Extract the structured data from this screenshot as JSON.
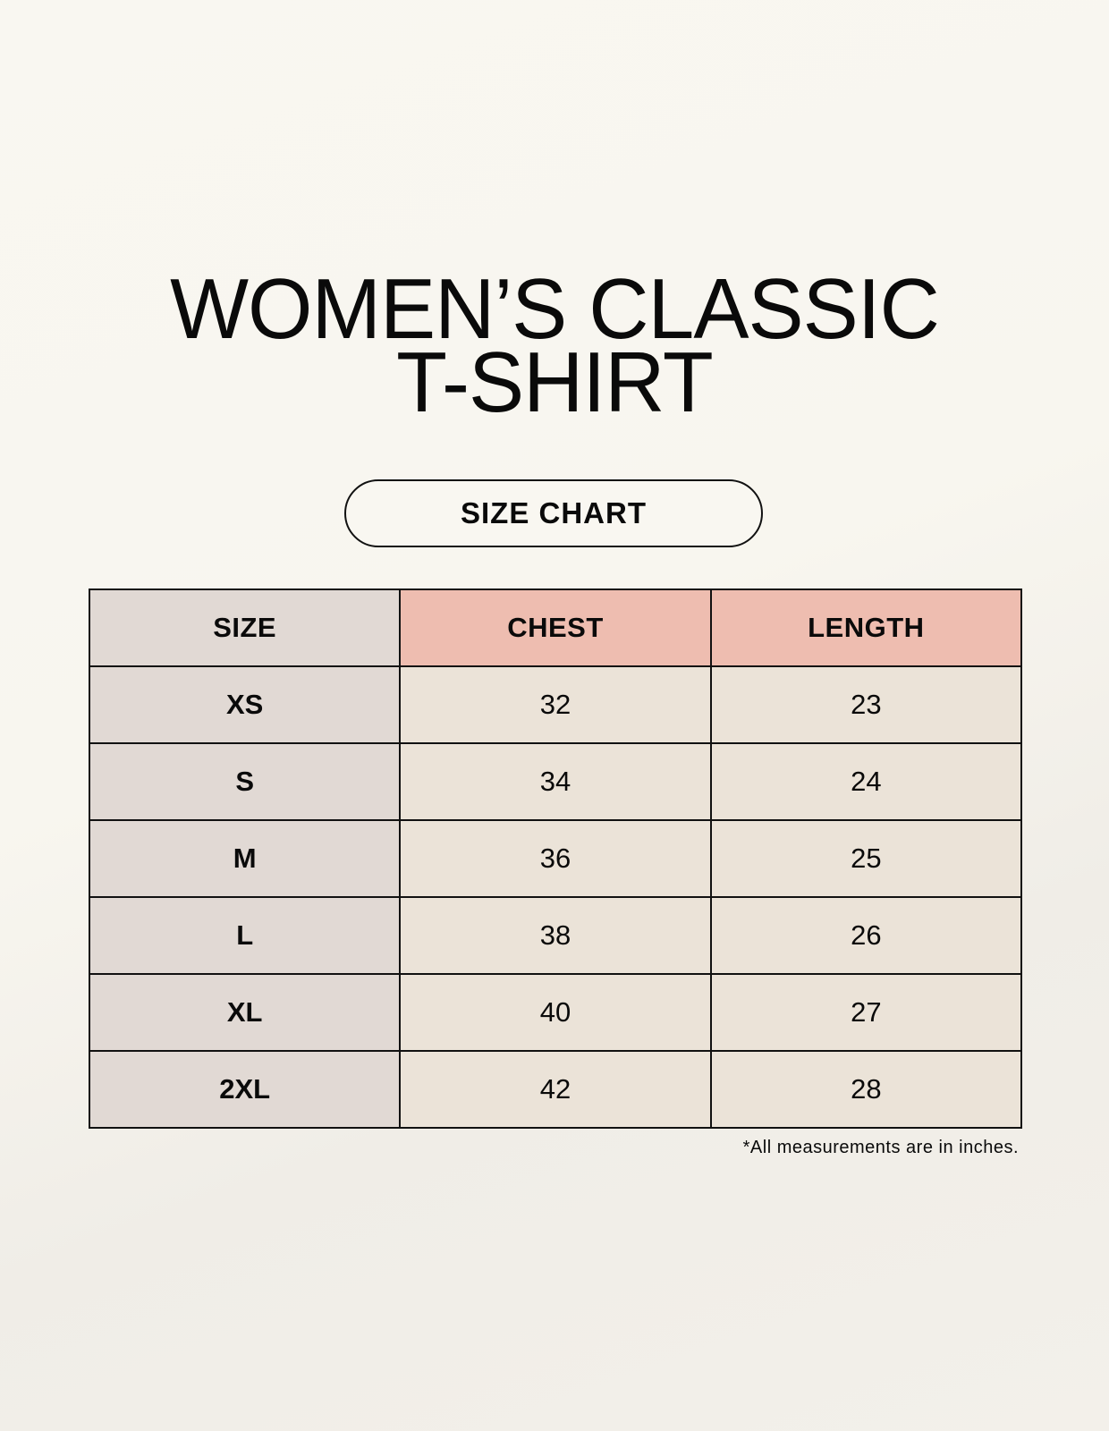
{
  "title_line1": "WOMEN’S CLASSIC",
  "title_line2": "T-SHIRT",
  "badge": "SIZE CHART",
  "colors": {
    "size_column": "#e1d9d4",
    "header_accent": "#eebdb0",
    "cell": "#ebe3d8",
    "background": "#f8f6f0"
  },
  "table": {
    "headers": [
      "SIZE",
      "CHEST",
      "LENGTH"
    ],
    "rows": [
      [
        "XS",
        "32",
        "23"
      ],
      [
        "S",
        "34",
        "24"
      ],
      [
        "M",
        "36",
        "25"
      ],
      [
        "L",
        "38",
        "26"
      ],
      [
        "XL",
        "40",
        "27"
      ],
      [
        "2XL",
        "42",
        "28"
      ]
    ]
  },
  "footnote": "*All measurements are in inches."
}
